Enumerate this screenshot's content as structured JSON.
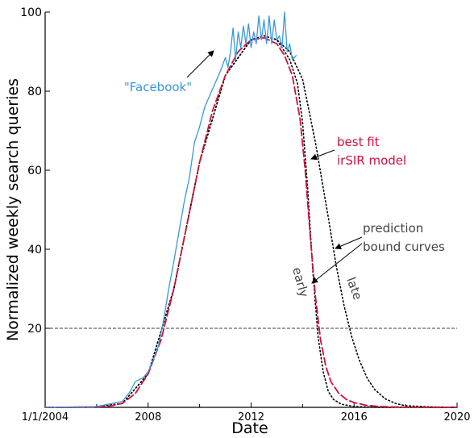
{
  "chart_data": {
    "type": "line",
    "xlabel": "Date",
    "ylabel": "Normalized weekly search queries",
    "xlim": [
      2004,
      2020
    ],
    "ylim": [
      0,
      100
    ],
    "xticks": [
      {
        "value": 2004,
        "label": "1/1/2004"
      },
      {
        "value": 2008,
        "label": "2008"
      },
      {
        "value": 2012,
        "label": "2012"
      },
      {
        "value": 2016,
        "label": "2016"
      },
      {
        "value": 2020,
        "label": "2020"
      }
    ],
    "xticks_minor": [
      2006,
      2010,
      2014,
      2018
    ],
    "yticks": [
      20,
      40,
      60,
      80,
      100
    ],
    "threshold": 20,
    "colors": {
      "data": "#3a96e0",
      "fit": "#d0103a",
      "bound": "#000000",
      "annotation": "#444444"
    },
    "series": [
      {
        "name": "\"Facebook\"",
        "style": "solid",
        "color": "#3a96e0",
        "x": [
          2004.0,
          2006.0,
          2007.0,
          2007.3,
          2007.5,
          2007.8,
          2008.0,
          2008.2,
          2008.4,
          2008.6,
          2008.8,
          2009.0,
          2009.2,
          2009.4,
          2009.6,
          2009.8,
          2010.0,
          2010.2,
          2010.4,
          2010.6,
          2010.8,
          2011.0,
          2011.1,
          2011.2,
          2011.3,
          2011.4,
          2011.5,
          2011.6,
          2011.7,
          2011.8,
          2011.9,
          2012.0,
          2012.1,
          2012.2,
          2012.3,
          2012.4,
          2012.5,
          2012.6,
          2012.7,
          2012.8,
          2012.9,
          2013.0,
          2013.1,
          2013.2,
          2013.3,
          2013.4,
          2013.5,
          2013.6,
          2013.75
        ],
        "y": [
          0.0,
          0.2,
          1.5,
          4.0,
          6.5,
          7.5,
          9.0,
          12.0,
          15.5,
          22.0,
          30.0,
          37.0,
          44.5,
          52.0,
          58.0,
          67.0,
          71.0,
          76.0,
          79.0,
          82.0,
          85.0,
          88.5,
          86.0,
          90.0,
          96.0,
          88.0,
          95.0,
          91.0,
          96.5,
          92.0,
          97.0,
          91.0,
          95.0,
          92.0,
          99.0,
          93.0,
          98.0,
          92.0,
          99.0,
          92.0,
          98.0,
          93.0,
          94.0,
          91.0,
          100.0,
          90.0,
          92.0,
          88.0,
          89.0
        ]
      },
      {
        "name": "best fit irSIR model",
        "style": "dashed",
        "color": "#d0103a",
        "x": [
          2004.0,
          2005.0,
          2006.0,
          2006.5,
          2007.0,
          2007.5,
          2008.0,
          2008.5,
          2009.0,
          2009.5,
          2010.0,
          2010.5,
          2011.0,
          2011.5,
          2012.0,
          2012.5,
          2013.0,
          2013.3,
          2013.6,
          2013.9,
          2014.1,
          2014.3,
          2014.5,
          2014.7,
          2014.9,
          2015.1,
          2015.4,
          2015.7,
          2016.0,
          2016.5,
          2017.0,
          2018.0,
          2019.0,
          2020.0
        ],
        "y": [
          0.0,
          0.0,
          0.1,
          0.3,
          1.0,
          3.5,
          8.5,
          17.0,
          30.0,
          46.0,
          62.0,
          75.0,
          84.0,
          90.0,
          93.0,
          93.5,
          92.0,
          89.0,
          84.0,
          73.0,
          60.0,
          43.0,
          28.0,
          17.0,
          10.5,
          6.5,
          3.6,
          2.0,
          1.2,
          0.5,
          0.2,
          0.05,
          0.0,
          0.0
        ]
      },
      {
        "name": "early",
        "style": "dotted",
        "color": "#000000",
        "x": [
          2004.0,
          2006.0,
          2007.0,
          2008.0,
          2009.0,
          2010.0,
          2011.0,
          2012.0,
          2012.5,
          2013.0,
          2013.5,
          2013.8,
          2014.0,
          2014.2,
          2014.4,
          2014.6,
          2014.8,
          2015.0,
          2015.2,
          2015.5,
          2016.0,
          2017.0,
          2018.0,
          2020.0
        ],
        "y": [
          0.0,
          0.1,
          1.0,
          8.5,
          30.0,
          62.0,
          84.0,
          93.0,
          94.0,
          93.0,
          88.0,
          82.0,
          72.0,
          55.0,
          34.0,
          18.0,
          9.0,
          4.0,
          2.0,
          0.8,
          0.2,
          0.0,
          0.0,
          0.0
        ]
      },
      {
        "name": "late",
        "style": "dotted",
        "color": "#000000",
        "x": [
          2004.0,
          2006.0,
          2007.0,
          2008.0,
          2009.0,
          2010.0,
          2011.0,
          2012.0,
          2012.5,
          2013.0,
          2013.5,
          2014.0,
          2014.5,
          2015.0,
          2015.3,
          2015.6,
          2015.9,
          2016.2,
          2016.5,
          2016.8,
          2017.2,
          2017.6,
          2018.0,
          2019.0,
          2020.0
        ],
        "y": [
          0.0,
          0.1,
          1.0,
          8.5,
          30.0,
          62.0,
          84.0,
          93.0,
          94.0,
          93.0,
          90.0,
          83.0,
          67.0,
          48.0,
          36.0,
          26.0,
          18.0,
          12.0,
          7.5,
          4.5,
          2.2,
          1.0,
          0.4,
          0.1,
          0.0
        ]
      }
    ],
    "annotations": [
      {
        "text": "\"Facebook\"",
        "color": "#3a96e0"
      },
      {
        "lines": [
          "best fit",
          "irSIR model"
        ],
        "color": "#d0103a"
      },
      {
        "lines": [
          "prediction",
          "bound curves"
        ],
        "color": "#444444"
      },
      {
        "text": "early",
        "color": "#444444"
      },
      {
        "text": "late",
        "color": "#444444"
      }
    ]
  }
}
